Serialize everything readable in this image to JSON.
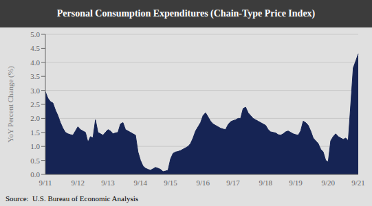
{
  "chart_data": {
    "type": "area",
    "title": "Personal Consumption Expenditures (Chain-Type Price Index)",
    "ylabel": "YoY Percent Change (%)",
    "source": "Source:  U.S. Bureau of Economic Analysis",
    "categories": [
      "9/11",
      null,
      null,
      null,
      null,
      null,
      null,
      null,
      null,
      null,
      null,
      null,
      null,
      "9/12",
      null,
      null,
      null,
      null,
      null,
      null,
      null,
      null,
      null,
      null,
      null,
      "9/13",
      null,
      null,
      null,
      null,
      null,
      null,
      null,
      null,
      null,
      null,
      null,
      null,
      "9/14",
      null,
      null,
      null,
      null,
      null,
      null,
      null,
      null,
      null,
      null,
      null,
      "9/15",
      null,
      null,
      null,
      null,
      null,
      null,
      null,
      null,
      null,
      null,
      null,
      null,
      "9/16",
      null,
      null,
      null,
      null,
      null,
      null,
      null,
      null,
      null,
      null,
      null,
      "9/17",
      null,
      null,
      null,
      null,
      null,
      null,
      null,
      null,
      null,
      null,
      null,
      null,
      "9/18",
      null,
      null,
      null,
      null,
      null,
      null,
      null,
      null,
      null,
      null,
      null,
      "9/19",
      null,
      null,
      null,
      null,
      null,
      null,
      null,
      null,
      null,
      null,
      null,
      null,
      "9/20",
      null,
      null,
      null,
      null,
      null,
      null,
      null,
      null,
      null,
      null,
      null,
      "9/21"
    ],
    "values": [
      2.95,
      2.72,
      2.6,
      2.55,
      2.3,
      2.1,
      1.85,
      1.65,
      1.5,
      1.45,
      1.42,
      1.4,
      1.55,
      1.7,
      1.6,
      1.55,
      1.5,
      1.15,
      1.35,
      1.3,
      1.95,
      1.5,
      1.45,
      1.4,
      1.5,
      1.6,
      1.55,
      1.45,
      1.48,
      1.5,
      1.8,
      1.85,
      1.6,
      1.55,
      1.5,
      1.45,
      1.4,
      0.8,
      0.5,
      0.3,
      0.22,
      0.18,
      0.15,
      0.2,
      0.25,
      0.22,
      0.18,
      0.1,
      0.12,
      0.15,
      0.55,
      0.75,
      0.8,
      0.82,
      0.85,
      0.9,
      0.95,
      1.0,
      1.1,
      1.3,
      1.55,
      1.7,
      1.85,
      2.1,
      2.2,
      2.05,
      1.9,
      1.8,
      1.75,
      1.7,
      1.65,
      1.62,
      1.6,
      1.78,
      1.88,
      1.92,
      1.95,
      2.0,
      2.0,
      2.35,
      2.4,
      2.2,
      2.1,
      2.0,
      1.95,
      1.9,
      1.85,
      1.8,
      1.75,
      1.6,
      1.52,
      1.5,
      1.48,
      1.42,
      1.4,
      1.45,
      1.52,
      1.55,
      1.5,
      1.45,
      1.42,
      1.4,
      1.55,
      1.9,
      1.85,
      1.75,
      1.55,
      1.3,
      1.2,
      1.1,
      0.9,
      0.8,
      0.5,
      0.45,
      1.2,
      1.35,
      1.45,
      1.35,
      1.3,
      1.25,
      1.3,
      1.2,
      2.5,
      3.8,
      4.05,
      4.3
    ],
    "color": "#162454",
    "ylim": [
      0.0,
      5.0
    ],
    "yticks": [
      {
        "value": 0.0,
        "label": "0.0"
      },
      {
        "value": 0.5,
        "label": "0.5"
      },
      {
        "value": 1.0,
        "label": "1.0"
      },
      {
        "value": 1.5,
        "label": "1.5"
      },
      {
        "value": 2.0,
        "label": "2.0"
      },
      {
        "value": 2.5,
        "label": "2.5"
      },
      {
        "value": 3.0,
        "label": "3.0"
      },
      {
        "value": 3.5,
        "label": "3.5"
      },
      {
        "value": 4.0,
        "label": "4.0"
      },
      {
        "value": 4.5,
        "label": "4.5"
      },
      {
        "value": 5.0,
        "label": "5.0"
      }
    ],
    "grid": true
  }
}
